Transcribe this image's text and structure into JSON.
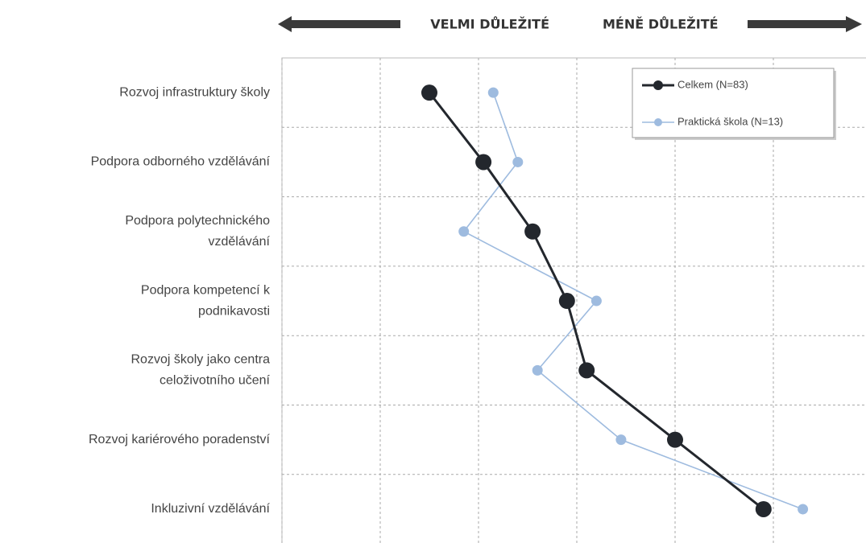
{
  "chart_data": {
    "type": "line",
    "header": {
      "left": "VELMI DŮLEŽITÉ",
      "right": "MÉNĚ DŮLEŽITÉ"
    },
    "categories": [
      [
        "Rozvoj infrastruktury školy"
      ],
      [
        "Podpora odborného vzdělávání"
      ],
      [
        "Podpora polytechnického",
        "vzdělávání"
      ],
      [
        "Podpora kompetencí k",
        "podnikavosti"
      ],
      [
        "Rozvoj školy jako centra",
        "celoživotního učení"
      ],
      [
        "Rozvoj kariérového poradenství"
      ],
      [
        "Inkluzivní vzdělávání"
      ]
    ],
    "series": [
      {
        "name": "Celkem (N=83)",
        "color": "#23272d",
        "values": [
          1.5,
          2.05,
          2.55,
          2.9,
          3.1,
          4.0,
          4.9
        ]
      },
      {
        "name": "Praktická škola (N=13)",
        "color": "#9ebbdf",
        "values": [
          2.15,
          2.4,
          1.85,
          3.2,
          2.6,
          3.45,
          5.3
        ]
      }
    ],
    "xlim": [
      0,
      6
    ],
    "xticks": [
      0,
      1,
      2,
      3,
      4,
      5
    ],
    "grid": true
  }
}
